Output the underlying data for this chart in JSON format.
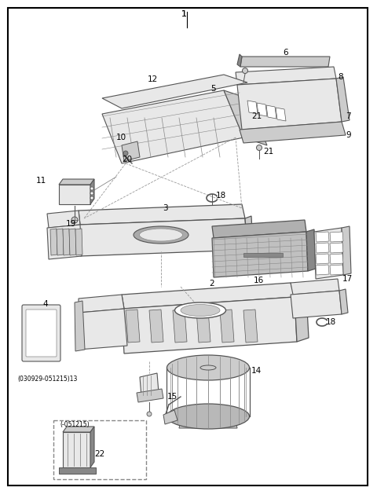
{
  "bg_color": "#ffffff",
  "border_color": "#000000",
  "figsize": [
    4.8,
    6.25
  ],
  "dpi": 100,
  "gray_dark": "#555555",
  "gray_mid": "#888888",
  "gray_light": "#cccccc",
  "gray_lighter": "#e8e8e8",
  "line_color": "#333333"
}
